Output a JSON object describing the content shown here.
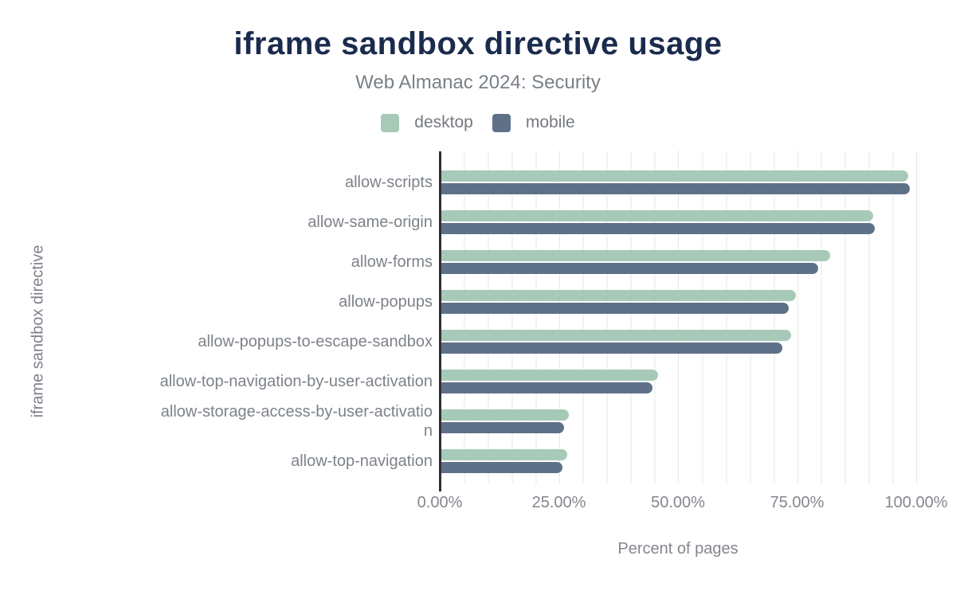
{
  "chart_data": {
    "type": "bar",
    "orientation": "horizontal",
    "title": "iframe sandbox directive usage",
    "subtitle": "Web Almanac 2024: Security",
    "xlabel": "Percent of pages",
    "ylabel": "iframe sandbox directive",
    "xlim": [
      0,
      100
    ],
    "x_ticks": [
      {
        "label": "0.00%",
        "value": 0
      },
      {
        "label": "25.00%",
        "value": 25
      },
      {
        "label": "50.00%",
        "value": 50
      },
      {
        "label": "75.00%",
        "value": 75
      },
      {
        "label": "100.00%",
        "value": 100
      }
    ],
    "grid": {
      "minor_step_percent": 5,
      "major_step_percent": 25,
      "major_style": "dotted"
    },
    "legend_position": "top",
    "categories": [
      "allow-scripts",
      "allow-same-origin",
      "allow-forms",
      "allow-popups",
      "allow-popups-to-escape-sandbox",
      "allow-top-navigation-by-user-activation",
      "allow-storage-access-by-user-activation",
      "allow-top-navigation"
    ],
    "category_display_lines": [
      [
        "allow-scripts"
      ],
      [
        "allow-same-origin"
      ],
      [
        "allow-forms"
      ],
      [
        "allow-popups"
      ],
      [
        "allow-popups-to-escape-sandbox"
      ],
      [
        "allow-top-navigation-by-user-activation"
      ],
      [
        "allow-storage-access-by-user-activatio",
        "n"
      ],
      [
        "allow-top-navigation"
      ]
    ],
    "series": [
      {
        "name": "desktop",
        "color": "#a6cab7",
        "values": [
          98.3,
          90.9,
          82.0,
          74.7,
          73.8,
          45.8,
          27.1,
          26.7
        ]
      },
      {
        "name": "mobile",
        "color": "#5e7188",
        "values": [
          98.6,
          91.3,
          79.5,
          73.2,
          71.9,
          44.7,
          26.1,
          25.7
        ]
      }
    ]
  },
  "colors": {
    "title": "#1a2b4d",
    "subtitle": "#7a8088",
    "axis_line": "#2e3135",
    "tick_text": "#83878e",
    "category_text": "#7d828a",
    "gridline_minor": "#f3f3f3",
    "gridline_major": "#cfcfcf",
    "desktop": "#a6cab7",
    "mobile": "#5e7188"
  }
}
